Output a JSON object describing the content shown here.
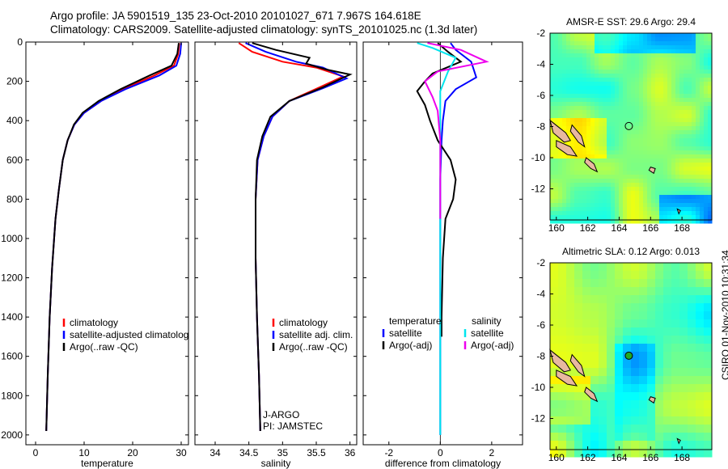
{
  "header": {
    "title_line1": "Argo profile: JA 5901519_135 23-Oct-2010 20101027_671 7.967S 164.618E",
    "title_line2": "Climatology: CARS2009. Satellite-adjusted climatology: synTS_20101025.nc (1.3d later)"
  },
  "side_stamp": "CSIRO 01-Nov-2010 10:31:34",
  "colors": {
    "climatology": "#ff0000",
    "satellite": "#0000ff",
    "argo": "#000000",
    "sal_satellite": "#00e5ee",
    "sal_argo": "#ee00ee",
    "land": "#e8b8a0"
  },
  "chart_data": [
    {
      "type": "line",
      "id": "temperature",
      "xlabel": "temperature",
      "ylabel": "",
      "xlim": [
        -2,
        31.5
      ],
      "ylim": [
        2050,
        0
      ],
      "xticks": [
        0,
        10,
        20,
        30
      ],
      "yticks": [
        0,
        200,
        400,
        600,
        800,
        1000,
        1200,
        1400,
        1600,
        1800,
        2000
      ],
      "legend": {
        "placement": "lower-left",
        "entries": [
          "climatology",
          "satellite-adjusted climatology",
          "Argo(..raw -QC)"
        ]
      },
      "series": [
        {
          "name": "climatology",
          "color": "#ff0000",
          "x": [
            29.6,
            29.4,
            28.5,
            24.5,
            18,
            13.5,
            10,
            8,
            6.6,
            5.6,
            4.8,
            4.1,
            3.4,
            2.9,
            2.5,
            2.2
          ],
          "y": [
            5,
            60,
            120,
            170,
            240,
            300,
            360,
            420,
            500,
            600,
            750,
            900,
            1150,
            1400,
            1700,
            1980
          ]
        },
        {
          "name": "satellite-adjusted climatology",
          "color": "#0000ff",
          "x": [
            30,
            29.8,
            29,
            25.5,
            18.5,
            13.5,
            10,
            8,
            6.6,
            5.6,
            4.8,
            4.1,
            3.4,
            2.9,
            2.5,
            2.2
          ],
          "y": [
            5,
            60,
            120,
            170,
            240,
            300,
            360,
            420,
            500,
            600,
            750,
            900,
            1150,
            1400,
            1700,
            1980
          ]
        },
        {
          "name": "Argo(..raw -QC)",
          "color": "#000000",
          "x": [
            29.5,
            29.2,
            28,
            23.5,
            17.5,
            13,
            9.7,
            7.9,
            6.6,
            5.6,
            4.8,
            4.1,
            3.4,
            2.9,
            2.5,
            2.2
          ],
          "y": [
            5,
            60,
            120,
            170,
            240,
            300,
            360,
            420,
            500,
            600,
            750,
            900,
            1150,
            1400,
            1700,
            1980
          ]
        }
      ]
    },
    {
      "type": "line",
      "id": "salinity",
      "xlabel": "salinity",
      "ylabel": "",
      "xlim": [
        33.7,
        36.1
      ],
      "ylim": [
        2050,
        0
      ],
      "xticks": [
        34,
        34.5,
        35,
        35.5,
        36
      ],
      "xticklabels": [
        "34",
        "34.5",
        "35",
        "35.5",
        "36"
      ],
      "legend": {
        "placement": "lower-left",
        "entries": [
          "climatology",
          "satellite adj. clim.",
          "Argo(..raw -QC)"
        ]
      },
      "annotation": [
        "J-ARGO",
        "PI: JAMSTEC"
      ],
      "series": [
        {
          "name": "climatology",
          "color": "#ff0000",
          "x": [
            34.35,
            34.55,
            35.0,
            35.5,
            35.9,
            35.55,
            35.1,
            34.85,
            34.72,
            34.63,
            34.6,
            34.6,
            34.62,
            34.65,
            34.67
          ],
          "y": [
            5,
            50,
            100,
            130,
            175,
            230,
            300,
            380,
            480,
            600,
            800,
            1100,
            1400,
            1700,
            1980
          ]
        },
        {
          "name": "satellite adj. clim.",
          "color": "#0000ff",
          "x": [
            34.45,
            34.75,
            35.2,
            35.6,
            35.95,
            35.6,
            35.1,
            34.85,
            34.72,
            34.63,
            34.6,
            34.6,
            34.62,
            34.65,
            34.67
          ],
          "y": [
            5,
            50,
            100,
            130,
            185,
            235,
            300,
            380,
            480,
            600,
            800,
            1100,
            1400,
            1700,
            1980
          ]
        },
        {
          "name": "Argo(..raw -QC)",
          "color": "#000000",
          "x": [
            34.55,
            34.9,
            35.4,
            35.35,
            35.65,
            36.0,
            35.6,
            35.1,
            34.82,
            34.7,
            34.62,
            34.6,
            34.6,
            34.62,
            34.65,
            34.67
          ],
          "y": [
            5,
            40,
            80,
            110,
            140,
            165,
            230,
            300,
            380,
            480,
            600,
            800,
            1100,
            1400,
            1700,
            1980
          ]
        }
      ]
    },
    {
      "type": "line",
      "id": "difference",
      "xlabel": "difference from climatology",
      "ylabel": "",
      "xlim": [
        -3,
        3.2
      ],
      "ylim": [
        2050,
        0
      ],
      "xticks": [
        -2,
        0,
        2
      ],
      "legend": {
        "placement": "lower-left",
        "entries": [
          "temperature",
          "satellite",
          "Argo(-adj)",
          "salinity",
          "satellite",
          "Argo(-adj)"
        ]
      },
      "series": [
        {
          "name": "temperature satellite",
          "color": "#0000ff",
          "x": [
            0.4,
            0.6,
            1.2,
            1.4,
            0.6,
            0.2,
            0.1,
            0.05,
            0,
            0,
            0,
            0
          ],
          "y": [
            5,
            40,
            100,
            180,
            240,
            300,
            400,
            500,
            700,
            1000,
            1500,
            2000
          ]
        },
        {
          "name": "temperature Argo(-adj)",
          "color": "#000000",
          "x": [
            -0.1,
            0.3,
            0.8,
            -0.3,
            -0.6,
            -0.9,
            -0.6,
            -0.4,
            -0.1,
            0.4,
            0.6,
            0.5,
            0.2,
            0.1,
            0.05,
            0.05
          ],
          "y": [
            5,
            50,
            100,
            160,
            200,
            250,
            320,
            400,
            500,
            600,
            700,
            800,
            900,
            1100,
            1400,
            1500
          ]
        },
        {
          "name": "salinity satellite",
          "color": "#00e5ee",
          "x": [
            -0.9,
            -0.3,
            0.6,
            0.3,
            0,
            0,
            0,
            0
          ],
          "y": [
            5,
            30,
            80,
            150,
            250,
            400,
            1000,
            2000
          ]
        },
        {
          "name": "salinity Argo(-adj)",
          "color": "#ee00ee",
          "x": [
            -0.5,
            0.8,
            1.8,
            -0.1,
            -0.6,
            -0.3,
            -0.1,
            0,
            0
          ],
          "y": [
            5,
            40,
            100,
            150,
            200,
            280,
            350,
            500,
            900
          ]
        }
      ]
    },
    {
      "type": "heatmap",
      "id": "sst_map",
      "title": "AMSR-E SST: 29.6 Argo: 29.4",
      "xlim": [
        159.6,
        169.9
      ],
      "ylim": [
        -14,
        -2
      ],
      "xticks": [
        160,
        162,
        164,
        166,
        168
      ],
      "yticks": [
        -2,
        -4,
        -6,
        -8,
        -10,
        -12
      ],
      "yticklabels": [
        "-2",
        "-4",
        "-6",
        "-8",
        "-10",
        "-12"
      ],
      "argo_position": {
        "lon": 164.618,
        "lat": -7.967
      }
    },
    {
      "type": "heatmap",
      "id": "sla_map",
      "title": "Altimetric SLA: 0.12 Argo: 0.013",
      "xlim": [
        159.6,
        169.9
      ],
      "ylim": [
        -14,
        -2
      ],
      "xticks": [
        160,
        162,
        164,
        166,
        168
      ],
      "yticks": [
        -2,
        -4,
        -6,
        -8,
        -10,
        -12
      ],
      "yticklabels": [
        "-2",
        "-4",
        "-6",
        "-8",
        "-10",
        "-12"
      ],
      "argo_position": {
        "lon": 164.618,
        "lat": -7.967
      }
    }
  ]
}
